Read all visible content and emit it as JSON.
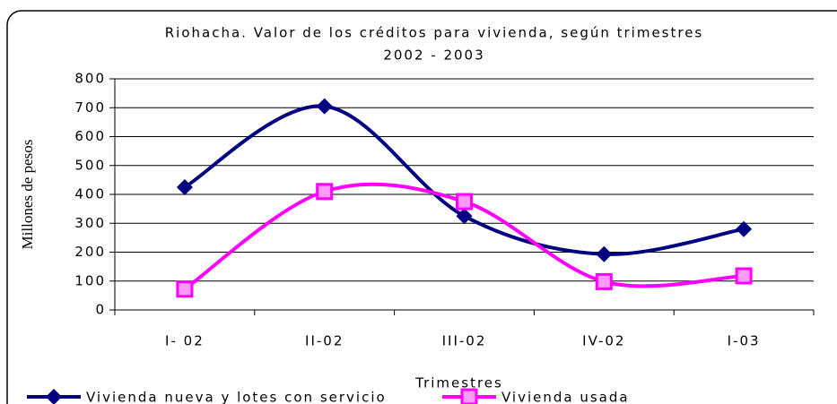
{
  "chart_data": {
    "type": "line",
    "title": "Riohacha. Valor de los créditos para vivienda, según trimestres",
    "subtitle": "2002 - 2003",
    "y_label": "Millones de pesos",
    "x_label": "Trimestres",
    "categories": [
      "I- 02",
      "II-02",
      "III-02",
      "IV-02",
      "I-03"
    ],
    "series": [
      {
        "name": "Vivienda nueva y lotes con servicio",
        "color": "#000080",
        "marker": "diamond",
        "values": [
          425,
          705,
          325,
          193,
          280
        ]
      },
      {
        "name": "Vivienda usada",
        "color": "#ff00ff",
        "marker": "square",
        "values": [
          72,
          410,
          375,
          98,
          118
        ]
      }
    ],
    "ylim": [
      0,
      800
    ],
    "yticks": [
      0,
      100,
      200,
      300,
      400,
      500,
      600,
      700,
      800
    ],
    "grid": true,
    "smooth": true,
    "legend": "bottom"
  }
}
